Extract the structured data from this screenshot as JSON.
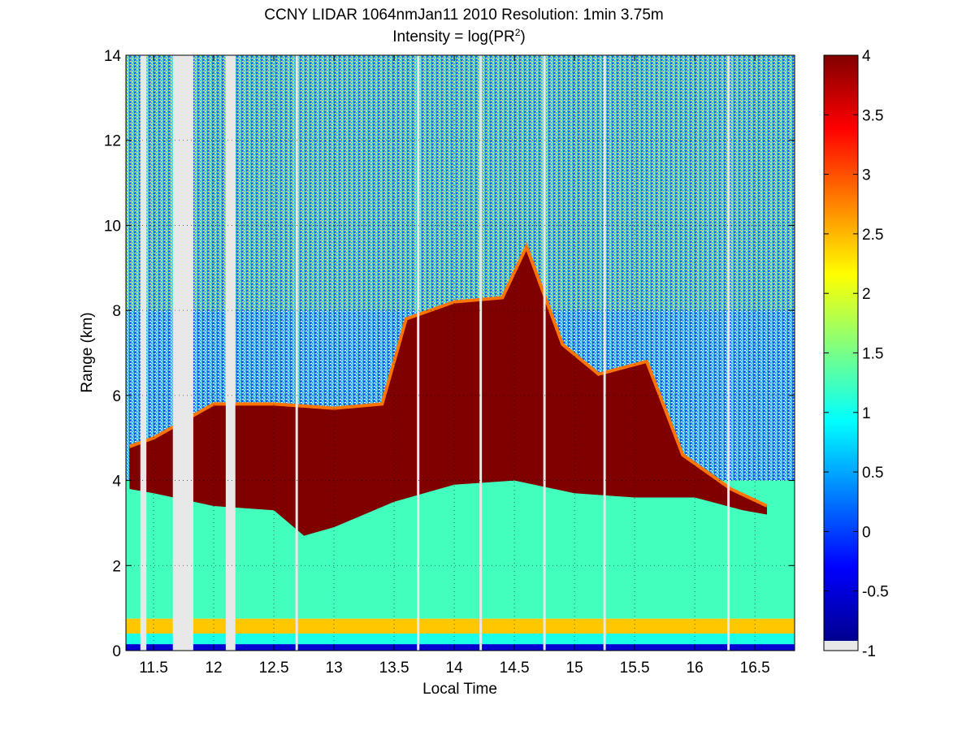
{
  "chart_data": {
    "type": "heatmap",
    "title": "CCNY LIDAR 1064nmJan11 2010 Resolution: 1min 3.75m",
    "subtitle_prefix": "Intensity = log(PR",
    "subtitle_sup": "2",
    "subtitle_suffix": ")",
    "xlabel": "Local Time",
    "ylabel": "Range (km)",
    "xlim": [
      11.27,
      16.83
    ],
    "ylim": [
      0,
      14
    ],
    "x_ticks": [
      11.5,
      12,
      12.5,
      13,
      13.5,
      14,
      14.5,
      15,
      15.5,
      16,
      16.5
    ],
    "x_tick_labels": [
      "11.5",
      "12",
      "12.5",
      "13",
      "13.5",
      "14",
      "14.5",
      "15",
      "15.5",
      "16",
      "16.5"
    ],
    "y_ticks": [
      0,
      2,
      4,
      6,
      8,
      10,
      12,
      14
    ],
    "y_tick_labels": [
      "0",
      "2",
      "4",
      "6",
      "8",
      "10",
      "12",
      "14"
    ],
    "grid": "dotted",
    "colormap": "jet",
    "colorbar": {
      "range": [
        -1,
        4
      ],
      "ticks": [
        -1,
        -0.5,
        0,
        0.5,
        1,
        1.5,
        2,
        2.5,
        3,
        3.5,
        4
      ],
      "tick_labels": [
        "-1",
        "-0.5",
        "0",
        "0.5",
        "1",
        "1.5",
        "2",
        "2.5",
        "3",
        "3.5",
        "4"
      ],
      "missing_value_color": "#e8e8e8"
    },
    "data_gaps": [
      {
        "x0": 11.39,
        "x1": 11.44
      },
      {
        "x0": 11.66,
        "x1": 11.83
      },
      {
        "x0": 12.1,
        "x1": 12.18
      },
      {
        "x0": 12.68,
        "x1": 12.7
      },
      {
        "x0": 13.69,
        "x1": 13.71
      },
      {
        "x0": 14.21,
        "x1": 14.23
      },
      {
        "x0": 14.74,
        "x1": 14.76
      },
      {
        "x0": 15.24,
        "x1": 15.26
      },
      {
        "x0": 16.27,
        "x1": 16.29
      }
    ],
    "layers": {
      "near_surface_band": {
        "y0": 0.4,
        "y1": 0.75,
        "value": 2.4
      },
      "boundary_layer": {
        "y0": 0.75,
        "y1_approx": 3.6,
        "value": 1.2
      },
      "free_troposphere_value": 0.6,
      "cloud_value": 4,
      "cloud_base_km": [
        {
          "x": 11.3,
          "y": 3.8
        },
        {
          "x": 11.5,
          "y": 3.7
        },
        {
          "x": 12.0,
          "y": 3.4
        },
        {
          "x": 12.5,
          "y": 3.3
        },
        {
          "x": 12.75,
          "y": 2.7
        },
        {
          "x": 13.0,
          "y": 2.9
        },
        {
          "x": 13.5,
          "y": 3.5
        },
        {
          "x": 14.0,
          "y": 3.9
        },
        {
          "x": 14.5,
          "y": 4.0
        },
        {
          "x": 15.0,
          "y": 3.7
        },
        {
          "x": 15.5,
          "y": 3.6
        },
        {
          "x": 16.0,
          "y": 3.6
        },
        {
          "x": 16.4,
          "y": 3.3
        },
        {
          "x": 16.6,
          "y": 3.2
        }
      ],
      "cloud_top_km": [
        {
          "x": 11.3,
          "y": 4.8
        },
        {
          "x": 11.5,
          "y": 5.0
        },
        {
          "x": 12.0,
          "y": 5.8
        },
        {
          "x": 12.5,
          "y": 5.8
        },
        {
          "x": 13.0,
          "y": 5.7
        },
        {
          "x": 13.4,
          "y": 5.8
        },
        {
          "x": 13.6,
          "y": 7.8
        },
        {
          "x": 14.0,
          "y": 8.2
        },
        {
          "x": 14.4,
          "y": 8.3
        },
        {
          "x": 14.6,
          "y": 9.5
        },
        {
          "x": 14.9,
          "y": 7.2
        },
        {
          "x": 15.2,
          "y": 6.5
        },
        {
          "x": 15.6,
          "y": 6.8
        },
        {
          "x": 15.9,
          "y": 4.6
        },
        {
          "x": 16.3,
          "y": 3.8
        },
        {
          "x": 16.6,
          "y": 3.4
        }
      ]
    }
  }
}
